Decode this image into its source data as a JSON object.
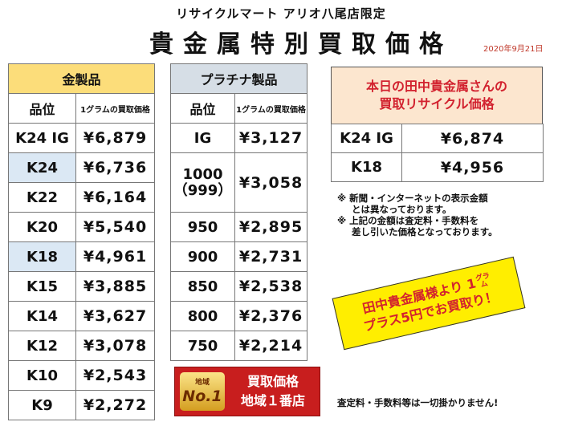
{
  "header": {
    "shop": "リサイクルマート アリオ八尾店限定",
    "title": "貴金属特別買取価格",
    "date": "2020年9月21日"
  },
  "gold": {
    "title": "金製品",
    "col_grade": "品位",
    "col_price": "1グラムの買取価格",
    "rows": [
      {
        "grade": "K24 IG",
        "price": "¥6,879"
      },
      {
        "grade": "K24",
        "price": "¥6,736"
      },
      {
        "grade": "K22",
        "price": "¥6,164"
      },
      {
        "grade": "K20",
        "price": "¥5,540"
      },
      {
        "grade": "K18",
        "price": "¥4,961"
      },
      {
        "grade": "K15",
        "price": "¥3,885"
      },
      {
        "grade": "K14",
        "price": "¥3,627"
      },
      {
        "grade": "K12",
        "price": "¥3,078"
      },
      {
        "grade": "K10",
        "price": "¥2,543"
      },
      {
        "grade": "K9",
        "price": "¥2,272"
      }
    ]
  },
  "platinum": {
    "title": "プラチナ製品",
    "col_grade": "品位",
    "col_price": "1グラムの買取価格",
    "rows": [
      {
        "grade": "IG",
        "price": "¥3,127"
      },
      {
        "grade": "1000",
        "grade_sub": "（999）",
        "price": "¥3,058"
      },
      {
        "grade": "950",
        "price": "¥2,895"
      },
      {
        "grade": "900",
        "price": "¥2,731"
      },
      {
        "grade": "850",
        "price": "¥2,538"
      },
      {
        "grade": "800",
        "price": "¥2,376"
      },
      {
        "grade": "750",
        "price": "¥2,214"
      }
    ]
  },
  "tanaka": {
    "title_line1": "本日の田中貴金属さんの",
    "title_line2": "買取リサイクル価格",
    "rows": [
      {
        "grade": "K24 IG",
        "price": "¥6,874"
      },
      {
        "grade": "K18",
        "price": "¥4,956"
      }
    ]
  },
  "notes": [
    "※ 新聞・インターネットの表示金額",
    "とは異なっております。",
    "※ 上記の金額は査定料・手数料を",
    "差し引いた価格となっております。"
  ],
  "badge": {
    "line1": "田中貴金属様より 1",
    "unit_top": "グラ",
    "unit_bottom": "ム",
    "line2": "プラス5円でお買取り！"
  },
  "banner": {
    "small": "地域",
    "big": "No.1",
    "line1": "買取価格",
    "line2": "地域１番店"
  },
  "footer": "査定料・手数料等は一切掛かりません!",
  "colors": {
    "gold_header": "#fcdd7a",
    "platinum_header": "#d6dee6",
    "highlight_row": "#dbe8f4",
    "accent_red": "#d2222f",
    "badge_yellow": "#ffee00"
  }
}
